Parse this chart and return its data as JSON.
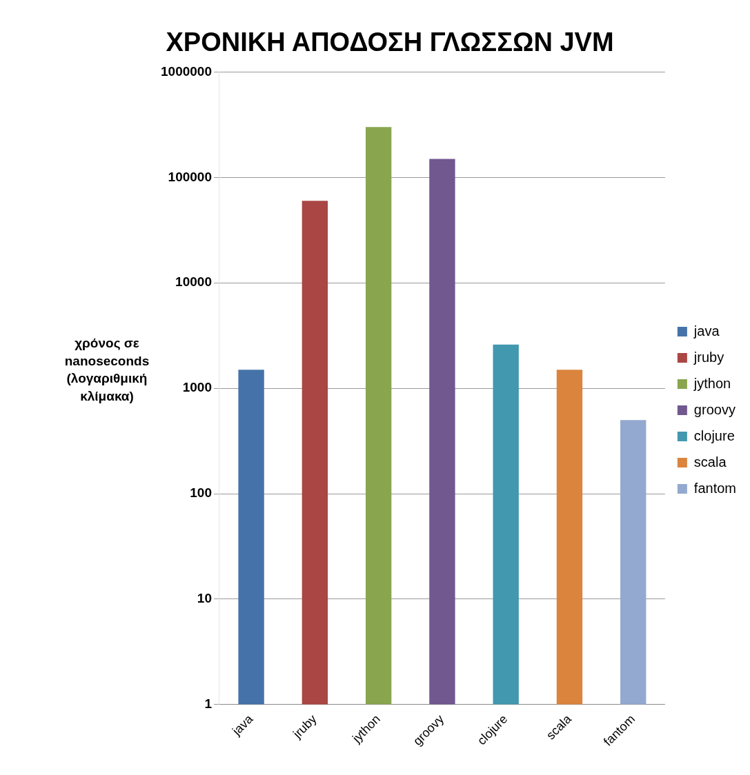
{
  "chart_data": {
    "type": "bar",
    "title": "ΧΡΟΝΙΚΗ ΑΠΟΔΟΣΗ ΓΛΩΣΣΩΝ JVM",
    "ylabel": "χρόνος σε nanoseconds (λογαριθμική κλίμακα)",
    "categories": [
      "java",
      "jruby",
      "jython",
      "groovy",
      "clojure",
      "scala",
      "fantom"
    ],
    "series": [
      {
        "name": "java",
        "color": "#4672aa",
        "values": [
          1500,
          null,
          null,
          null,
          null,
          null,
          null
        ]
      },
      {
        "name": "jruby",
        "color": "#aa4643",
        "values": [
          null,
          60000,
          null,
          null,
          null,
          null,
          null
        ]
      },
      {
        "name": "jython",
        "color": "#89a54e",
        "values": [
          null,
          null,
          300000,
          null,
          null,
          null,
          null
        ]
      },
      {
        "name": "groovy",
        "color": "#71588f",
        "values": [
          null,
          null,
          null,
          150000,
          null,
          null,
          null
        ]
      },
      {
        "name": "clojure",
        "color": "#4198af",
        "values": [
          null,
          null,
          null,
          null,
          2600,
          null,
          null
        ]
      },
      {
        "name": "scala",
        "color": "#db843d",
        "values": [
          null,
          null,
          null,
          null,
          null,
          1500,
          null
        ]
      },
      {
        "name": "fantom",
        "color": "#93a9cf",
        "values": [
          null,
          null,
          null,
          null,
          null,
          null,
          500
        ]
      }
    ],
    "log": "y",
    "ylim": [
      1,
      1000000
    ],
    "yticks": [
      1,
      10,
      100,
      1000,
      10000,
      100000,
      1000000
    ],
    "grid": "y",
    "legend": "right"
  }
}
